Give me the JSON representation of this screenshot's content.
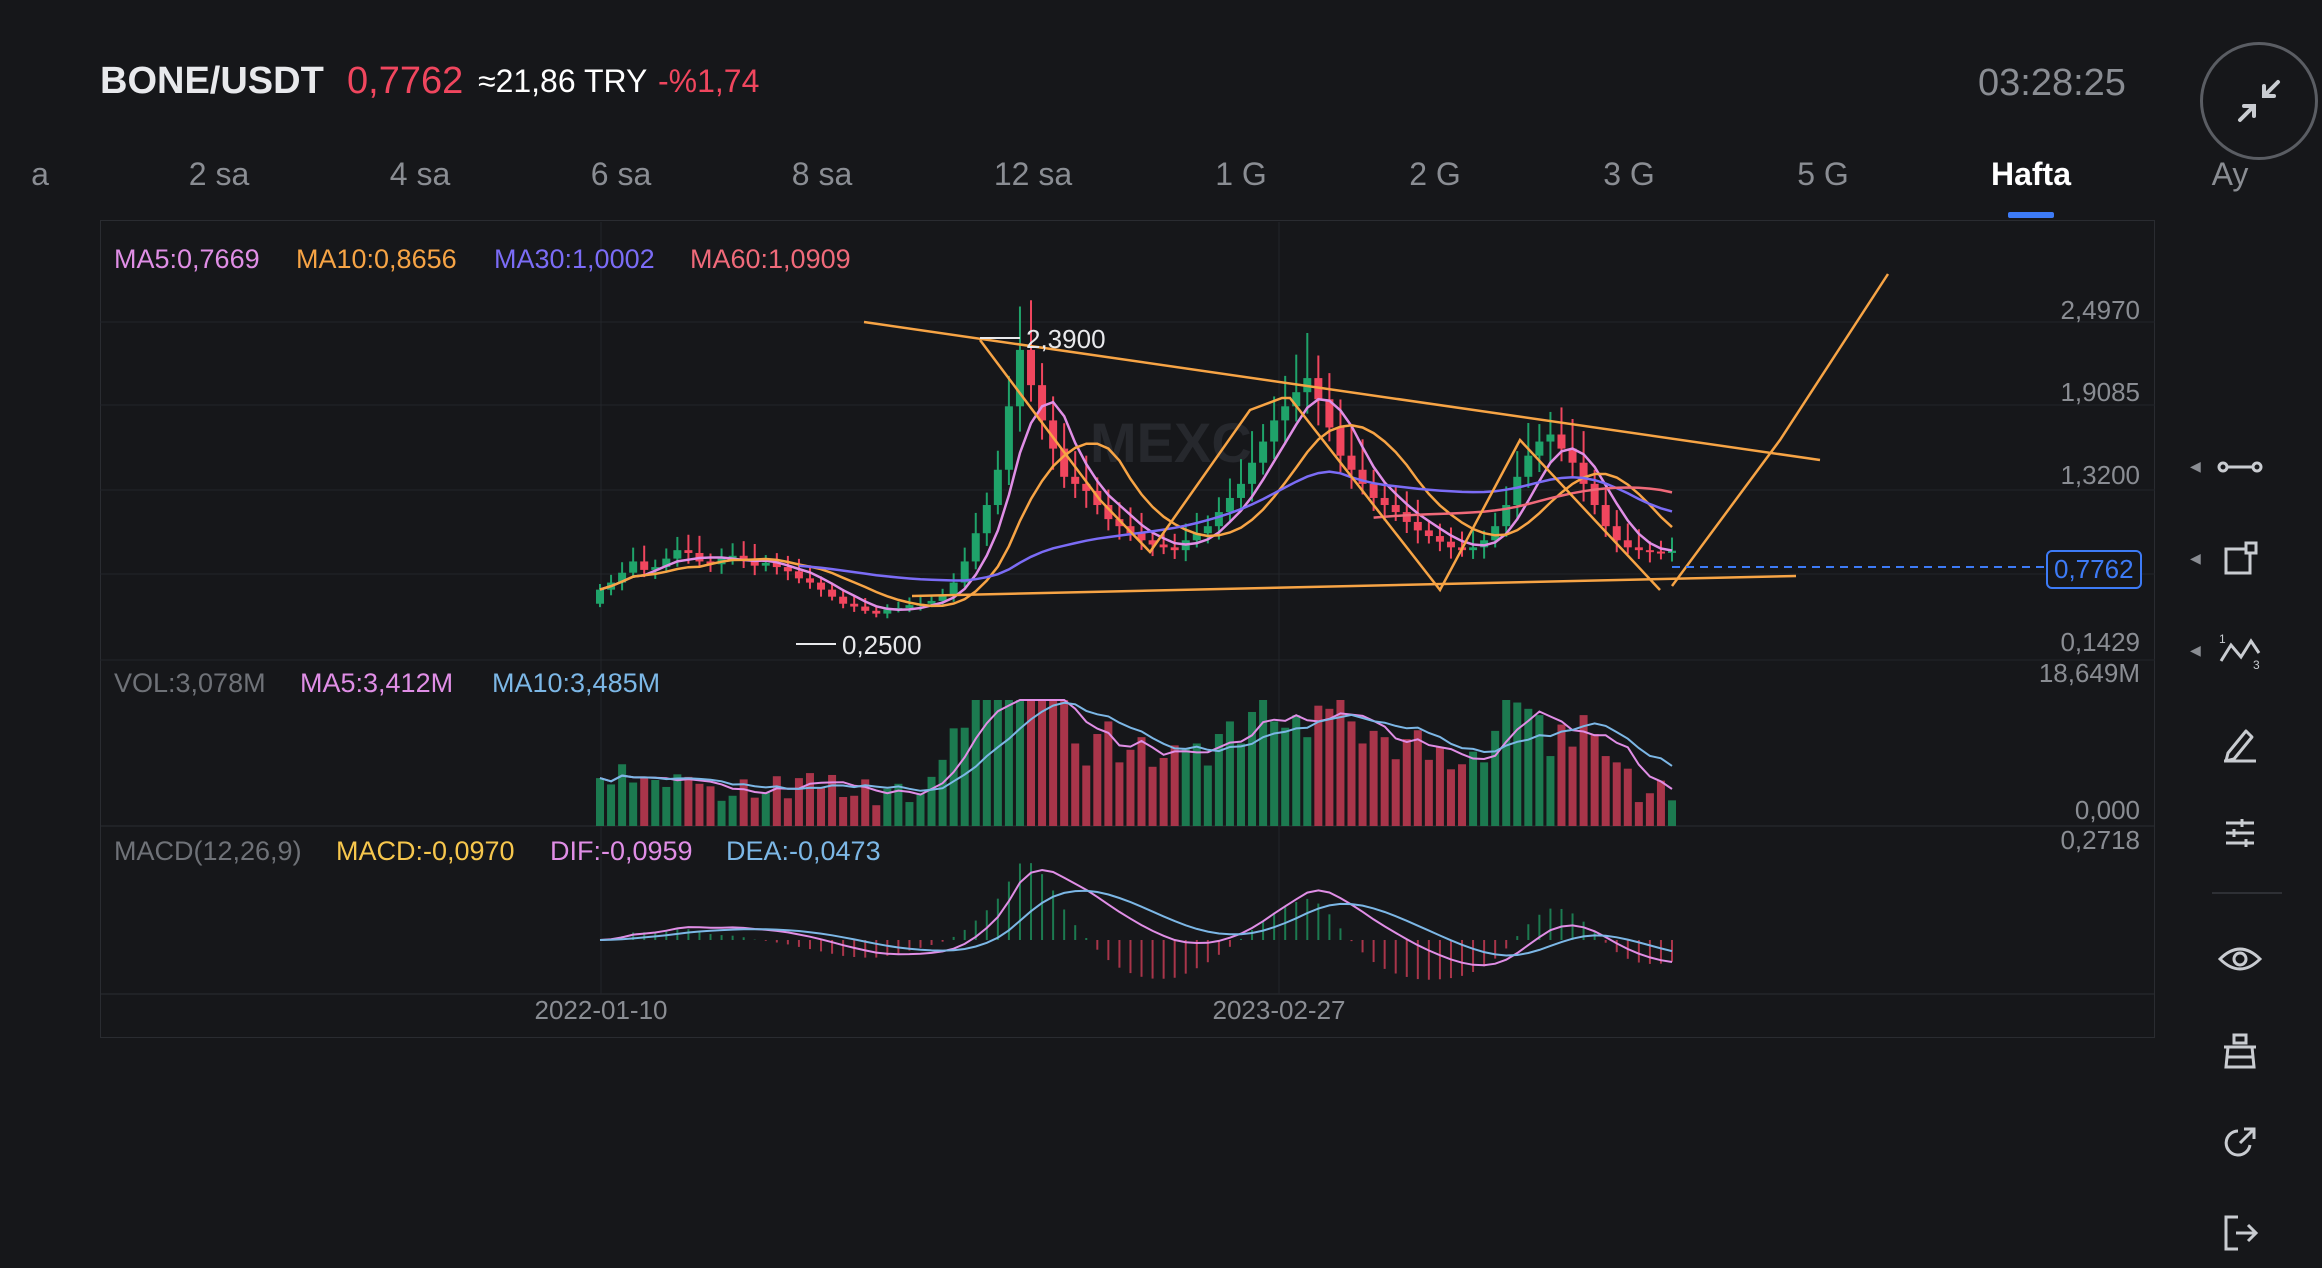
{
  "header": {
    "pair": "BONE/USDT",
    "price": "0,7762",
    "approx": "≈21,86 TRY",
    "change": "-%1,74",
    "clock": "03:28:25"
  },
  "tabs": [
    {
      "label": "a"
    },
    {
      "label": "2 sa"
    },
    {
      "label": "4 sa"
    },
    {
      "label": "6 sa"
    },
    {
      "label": "8 sa"
    },
    {
      "label": "12 sa"
    },
    {
      "label": "1 G"
    },
    {
      "label": "2 G"
    },
    {
      "label": "3 G"
    },
    {
      "label": "5 G"
    },
    {
      "label": "Hafta",
      "active": true
    },
    {
      "label": "Ay"
    }
  ],
  "legend": {
    "ma5": "MA5:0,7669",
    "ma10": "MA10:0,8656",
    "ma30": "MA30:1,0002",
    "ma60": "MA60:1,0909",
    "vol": "VOL:3,078M",
    "vol_ma5": "MA5:3,412M",
    "vol_ma10": "MA10:3,485M",
    "macd_title": "MACD(12,26,9)",
    "macd": "MACD:-0,0970",
    "dif": "DIF:-0,0959",
    "dea": "DEA:-0,0473"
  },
  "axis": {
    "price_ticks": [
      "2,4970",
      "1,9085",
      "1,3200",
      "0,1429"
    ],
    "vol_ticks": [
      "18,649M",
      "0,000"
    ],
    "macd_ticks": [
      "0,2718"
    ],
    "dates": [
      "2022-01-10",
      "2023-02-27"
    ],
    "high_mark": "2,3900",
    "low_mark": "0,2500",
    "current_price": "0,7762"
  },
  "watermark": "MEXC",
  "colors": {
    "up": "#1fa36a",
    "down": "#f0465e",
    "ma5": "#e08ee6",
    "ma10": "#f7a445",
    "ma30": "#7b6cf6",
    "ma60": "#f06a7a",
    "vol_ma10": "#7cb7e6",
    "accent": "#3d7bf7"
  },
  "toolbar": [
    "line-segment-icon",
    "shape-tool-icon",
    "wave-tool-icon",
    "pencil-icon",
    "indicator-settings-icon",
    "eye-icon",
    "template-icon",
    "share-icon",
    "exit-icon"
  ],
  "chart_data": {
    "type": "candlestick",
    "price_range": [
      0.1429,
      2.497
    ],
    "dates": [
      "2022-01-10",
      "2023-02-27"
    ],
    "annotations": {
      "high": 2.39,
      "low": 0.25,
      "current": 0.7762
    },
    "price_axis": [
      "2,4970",
      "1,9085",
      "1,3200",
      "0,1429"
    ],
    "volume_axis": [
      "18,649M",
      "0,000"
    ],
    "macd_axis": [
      "0,2718"
    ],
    "close": [
      0.5,
      0.55,
      0.62,
      0.7,
      0.64,
      0.66,
      0.72,
      0.78,
      0.76,
      0.7,
      0.68,
      0.72,
      0.74,
      0.71,
      0.67,
      0.69,
      0.66,
      0.63,
      0.58,
      0.55,
      0.5,
      0.45,
      0.4,
      0.38,
      0.35,
      0.33,
      0.36,
      0.37,
      0.39,
      0.4,
      0.42,
      0.46,
      0.55,
      0.7,
      0.9,
      1.1,
      1.35,
      1.8,
      2.2,
      1.95,
      1.7,
      1.5,
      1.3,
      1.25,
      1.2,
      1.1,
      1.0,
      0.95,
      0.9,
      0.85,
      0.82,
      0.8,
      0.78,
      0.85,
      0.9,
      0.95,
      1.05,
      1.15,
      1.25,
      1.4,
      1.55,
      1.7,
      1.8,
      1.9,
      2.0,
      1.85,
      1.65,
      1.45,
      1.35,
      1.25,
      1.15,
      1.1,
      1.05,
      0.98,
      0.92,
      0.88,
      0.84,
      0.8,
      0.78,
      0.8,
      0.85,
      0.95,
      1.1,
      1.3,
      1.45,
      1.55,
      1.6,
      1.5,
      1.4,
      1.25,
      1.1,
      0.95,
      0.85,
      0.8,
      0.78,
      0.77,
      0.76,
      0.7762
    ]
  }
}
